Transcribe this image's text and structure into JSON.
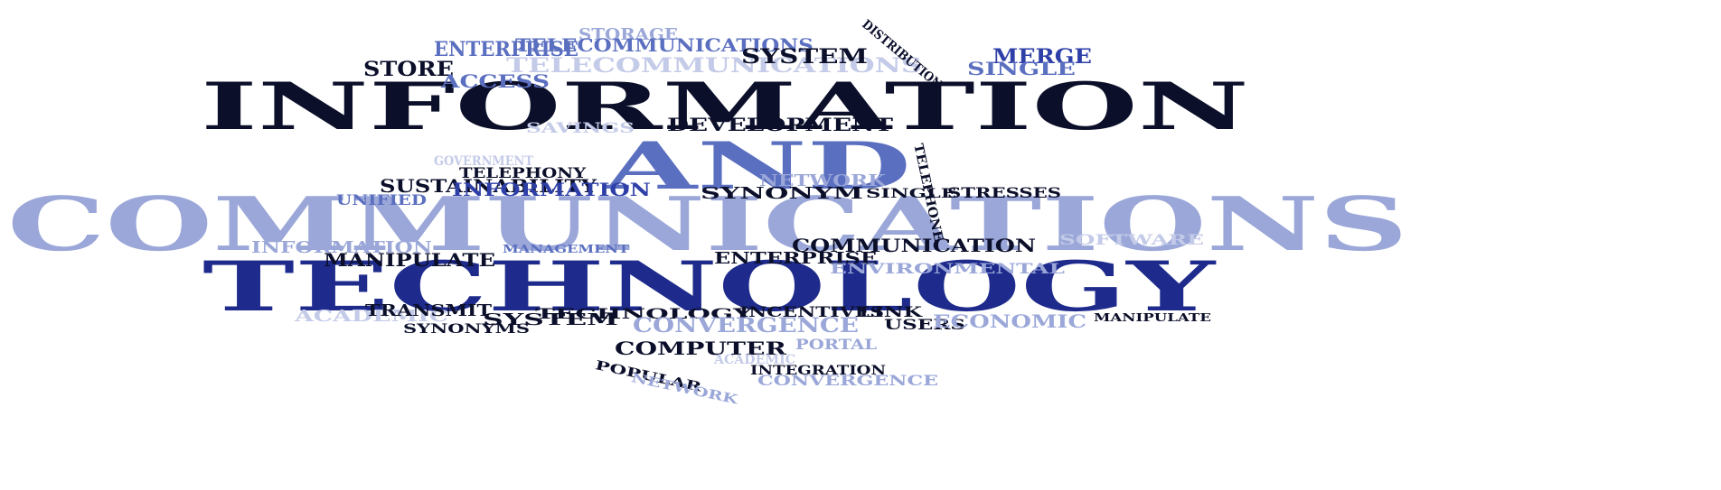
{
  "colors": {
    "dark": "#0b0f2a",
    "navy": "#1e2b8c",
    "royal": "#2e3fa8",
    "mid": "#5b6fc0",
    "light": "#9aa7d8",
    "pale": "#c4cbe8"
  },
  "words": [
    {
      "text": "INFORMATION",
      "tone": "dark"
    },
    {
      "text": "AND",
      "tone": "mid"
    },
    {
      "text": "COMMUNICATIONS",
      "tone": "light"
    },
    {
      "text": "TECHNOLOGY",
      "tone": "navy"
    },
    {
      "text": "STORAGE",
      "tone": "light"
    },
    {
      "text": "ENTERPRISE",
      "tone": "mid"
    },
    {
      "text": "TELECOMMUNICATIONS",
      "tone": "mid"
    },
    {
      "text": "TELECOMMUNICATIONS",
      "tone": "pale"
    },
    {
      "text": "STORE",
      "tone": "dark"
    },
    {
      "text": "ACCESS",
      "tone": "mid"
    },
    {
      "text": "SYSTEM",
      "tone": "dark"
    },
    {
      "text": "DISTRIBUTION",
      "tone": "dark"
    },
    {
      "text": "MERGE",
      "tone": "royal"
    },
    {
      "text": "SINGLE",
      "tone": "mid"
    },
    {
      "text": "SAVINGS",
      "tone": "pale"
    },
    {
      "text": "DEVELOPMENT",
      "tone": "dark"
    },
    {
      "text": "TELEPHONE",
      "tone": "dark"
    },
    {
      "text": "GOVERNMENT",
      "tone": "pale"
    },
    {
      "text": "TELEPHONY",
      "tone": "dark"
    },
    {
      "text": "SUSTAINABILITY",
      "tone": "dark"
    },
    {
      "text": "INFORMATION",
      "tone": "royal"
    },
    {
      "text": "UNIFIED",
      "tone": "mid"
    },
    {
      "text": "NETWORK",
      "tone": "light"
    },
    {
      "text": "SYNONYM",
      "tone": "dark"
    },
    {
      "text": "SINGLE",
      "tone": "dark"
    },
    {
      "text": "STRESSES",
      "tone": "dark"
    },
    {
      "text": "INFORMATION",
      "tone": "light"
    },
    {
      "text": "MANAGEMENT",
      "tone": "mid"
    },
    {
      "text": "COMMUNICATION",
      "tone": "dark"
    },
    {
      "text": "SOFTWARE",
      "tone": "pale"
    },
    {
      "text": "MANIPULATE",
      "tone": "dark"
    },
    {
      "text": "ENTERPRISE",
      "tone": "dark"
    },
    {
      "text": "ENVIRONMENTAL",
      "tone": "light"
    },
    {
      "text": "ACADEMIC",
      "tone": "pale"
    },
    {
      "text": "TRANSMIT",
      "tone": "dark"
    },
    {
      "text": "TECHNOLOGY",
      "tone": "dark"
    },
    {
      "text": "INCENTIVES",
      "tone": "dark"
    },
    {
      "text": "LINK",
      "tone": "dark"
    },
    {
      "text": "USERS",
      "tone": "dark"
    },
    {
      "text": "ECONOMIC",
      "tone": "light"
    },
    {
      "text": "MANIPULATE",
      "tone": "dark"
    },
    {
      "text": "SYNONYMS",
      "tone": "dark"
    },
    {
      "text": "SYSTEM",
      "tone": "dark"
    },
    {
      "text": "CONVERGENCE",
      "tone": "light"
    },
    {
      "text": "COMPUTER",
      "tone": "dark"
    },
    {
      "text": "PORTAL",
      "tone": "light"
    },
    {
      "text": "ACADEMIC",
      "tone": "pale"
    },
    {
      "text": "POPULAR",
      "tone": "dark"
    },
    {
      "text": "NETWORK",
      "tone": "light"
    },
    {
      "text": "INTEGRATION",
      "tone": "dark"
    },
    {
      "text": "CONVERGENCE",
      "tone": "light"
    }
  ]
}
